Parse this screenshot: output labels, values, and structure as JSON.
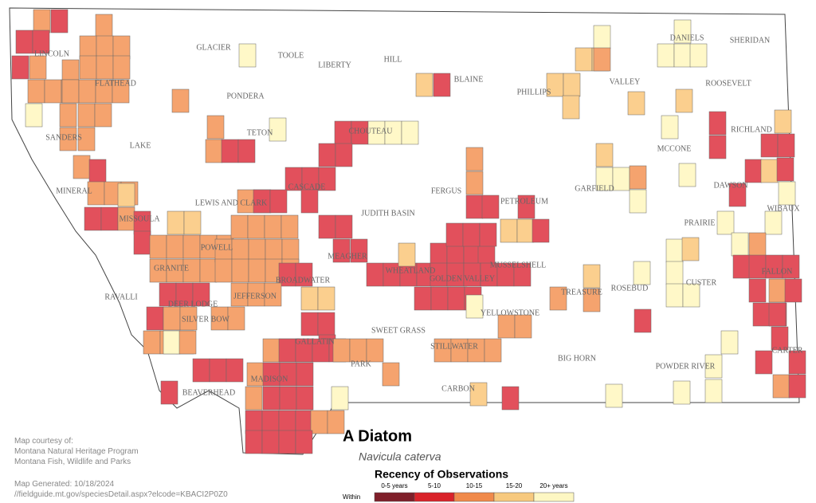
{
  "title": "A Diatom",
  "subtitle": "Navicula caterva",
  "legend": {
    "title": "Recency of Observations",
    "prefix": "Within",
    "items": [
      "0-5 years",
      "5-10",
      "10-15",
      "15-20",
      "20+ years"
    ],
    "colors": [
      "#7f1f2a",
      "#d9232a",
      "#f08a4b",
      "#f7c97e",
      "#fdf7c3"
    ]
  },
  "counties": [
    "LINCOLN",
    "FLATHEAD",
    "GLACIER",
    "TOOLE",
    "LIBERTY",
    "HILL",
    "BLAINE",
    "DANIELS",
    "SHERIDAN",
    "VALLEY",
    "ROOSEVELT",
    "PHILLIPS",
    "PONDERA",
    "TETON",
    "CHOUTEAU",
    "SANDERS",
    "LAKE",
    "RICHLAND",
    "MCCONE",
    "MINERAL",
    "CASCADE",
    "FERGUS",
    "PETROLEUM",
    "GARFIELD",
    "DAWSON",
    "WIBAUX",
    "LEWIS AND CLARK",
    "JUDITH BASIN",
    "MISSOULA",
    "PRAIRIE",
    "POWELL",
    "MEAGHER",
    "WHEATLAND",
    "GOLDEN VALLEY",
    "MUSSELSHELL",
    "GRANITE",
    "BROADWATER",
    "TREASURE",
    "ROSEBUD",
    "CUSTER",
    "FALLON",
    "RAVALLI",
    "DEER LODGE",
    "JEFFERSON",
    "SILVER BOW",
    "YELLOWSTONE",
    "SWEET GRASS",
    "STILLWATER",
    "BIG HORN",
    "CARTER",
    "GALLATIN",
    "PARK",
    "POWDER RIVER",
    "BEAVERHEAD",
    "MADISON",
    "CARBON"
  ],
  "credits": [
    "Map courtesy of:",
    "Montana Natural Heritage Program",
    "Montana Fish, Wildlife and Parks"
  ],
  "generated": "Map Generated: 10/18/2024",
  "url": "//fieldguide.mt.gov/speciesDetail.aspx?elcode=KBACI2P0Z0"
}
